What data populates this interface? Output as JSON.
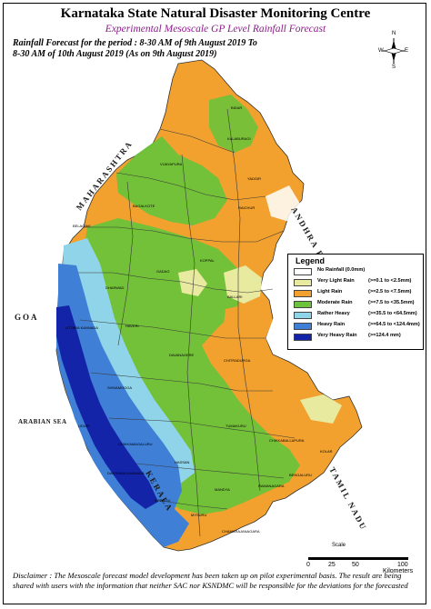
{
  "header": {
    "title": "Karnataka State Natural Disaster Monitoring Centre",
    "subtitle": "Experimental Mesoscale GP Level Rainfall Forecast",
    "period_line1": "Rainfall Forecast for the period : 8-30 AM of 9th August 2019 To",
    "period_line2": "8-30 AM of 10th August 2019 (As on 9th August 2019)"
  },
  "map_labels": {
    "maharashtra": "MAHARASHTRA",
    "goa": "GOA",
    "arabian_sea": "ARABIAN SEA",
    "kerala": "KERALA",
    "tamil_nadu": "TAMIL NADU",
    "andhra": "ANDHRA PRADESH"
  },
  "districts": {
    "bidar": "BIDAR",
    "kalaburagi": "KALABURAGI",
    "vijayapura": "VIJAYAPURA",
    "yadgir": "YADGIR",
    "bagalkote": "BAGALKOTE",
    "raichur": "RAICHUR",
    "belagavi": "BELAGAVI",
    "koppal": "KOPPAL",
    "gadag": "GADAG",
    "dharwad": "DHARWAD",
    "ballari": "BALLARI",
    "uttara_kannada": "UTTARA KANNADA",
    "haveri": "HAVERI",
    "davanagere": "DAVANAGERE",
    "chitradurga": "CHITRADURGA",
    "shivamogga": "SHIVAMOGGA",
    "udupi": "UDUPI",
    "chikkamagaluru": "CHIKKAMAGALURU",
    "tumakuru": "TUMAKURU",
    "chikkaballapura": "CHIKKABALLAPURA",
    "kolar": "KOLAR",
    "hassan": "HASSAN",
    "dakshina_kannada": "DAKSHINA KANNADA",
    "kodagu": "KODAGU",
    "mandya": "MANDYA",
    "ramanagara": "RAMANAGARA",
    "bengaluru": "BENGALURU",
    "mysuru": "MYSURU",
    "chamarajanagara": "CHAMARAJANAGARA"
  },
  "legend": {
    "title": "Legend",
    "items": [
      {
        "label": "No Rainfall (0.0mm)",
        "range": "",
        "color": "#ffffff"
      },
      {
        "label": "Very Light Rain",
        "range": "(>=0.1 to <2.5mm)",
        "color": "#e8eaa0"
      },
      {
        "label": "Light Rain",
        "range": "(>=2.5 to <7.5mm)",
        "color": "#f2a12e"
      },
      {
        "label": "Moderate Rain",
        "range": "(>=7.5 to <35.5mm)",
        "color": "#6cc23a"
      },
      {
        "label": "Rather Heavy",
        "range": "(>=35.5 to <64.5mm)",
        "color": "#8fd4e8"
      },
      {
        "label": "Heavy Rain",
        "range": "(>=64.5 to <124.4mm)",
        "color": "#3f7fd6"
      },
      {
        "label": "Very Heavy Rain",
        "range": "(>=124.4 mm)",
        "color": "#1424a8"
      }
    ]
  },
  "compass": {
    "n": "N",
    "s": "S",
    "e": "E",
    "w": "W"
  },
  "scale": {
    "label": "Scale",
    "ticks": [
      "0",
      "25",
      "50",
      "100"
    ],
    "unit": "Kilometers"
  },
  "disclaimer": "Disclaimer : The Mesoscale forecast model development has been taken up on pilot experimental basis. The result are being shared with users with the information that neither SAC nor KSNDMC will be responsible  for the deviations for the forecasted"
}
